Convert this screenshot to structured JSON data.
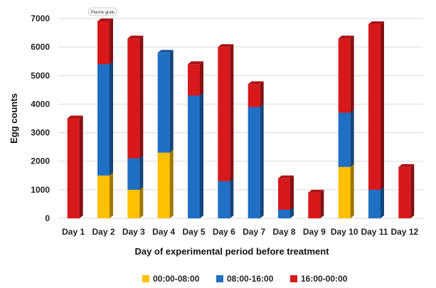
{
  "chart_data": {
    "type": "bar",
    "stacked": true,
    "title": "",
    "xlabel": "Day of experimental period before treatment",
    "ylabel": "Egg counts",
    "ylim": [
      0,
      7000
    ],
    "yticks": [
      "0",
      "1000",
      "2000",
      "3000",
      "4000",
      "5000",
      "6000",
      "7000"
    ],
    "grid": true,
    "legend_position": "bottom",
    "categories": [
      "Day 1",
      "Day 2",
      "Day 3",
      "Day 4",
      "Day 5",
      "Day 6",
      "Day 7",
      "Day 8",
      "Day 9",
      "Day 10",
      "Day 11",
      "Day 12"
    ],
    "series": [
      {
        "name": "00:00-08:00",
        "color": "#FFC000",
        "values": [
          0,
          1500,
          1000,
          2300,
          0,
          0,
          0,
          0,
          0,
          1800,
          0,
          0
        ]
      },
      {
        "name": "08:00-16:00",
        "color": "#1F6FC5",
        "values": [
          0,
          3900,
          1100,
          3500,
          4300,
          1300,
          3900,
          300,
          0,
          1900,
          1000,
          0
        ]
      },
      {
        "name": "16:00-00:00",
        "color": "#D7191C",
        "values": [
          3500,
          1500,
          4200,
          0,
          1100,
          4700,
          800,
          1100,
          900,
          2600,
          5800,
          1800
        ]
      }
    ],
    "annotations": [
      {
        "text": "Ptache grafu",
        "category": "Day 2"
      }
    ]
  }
}
